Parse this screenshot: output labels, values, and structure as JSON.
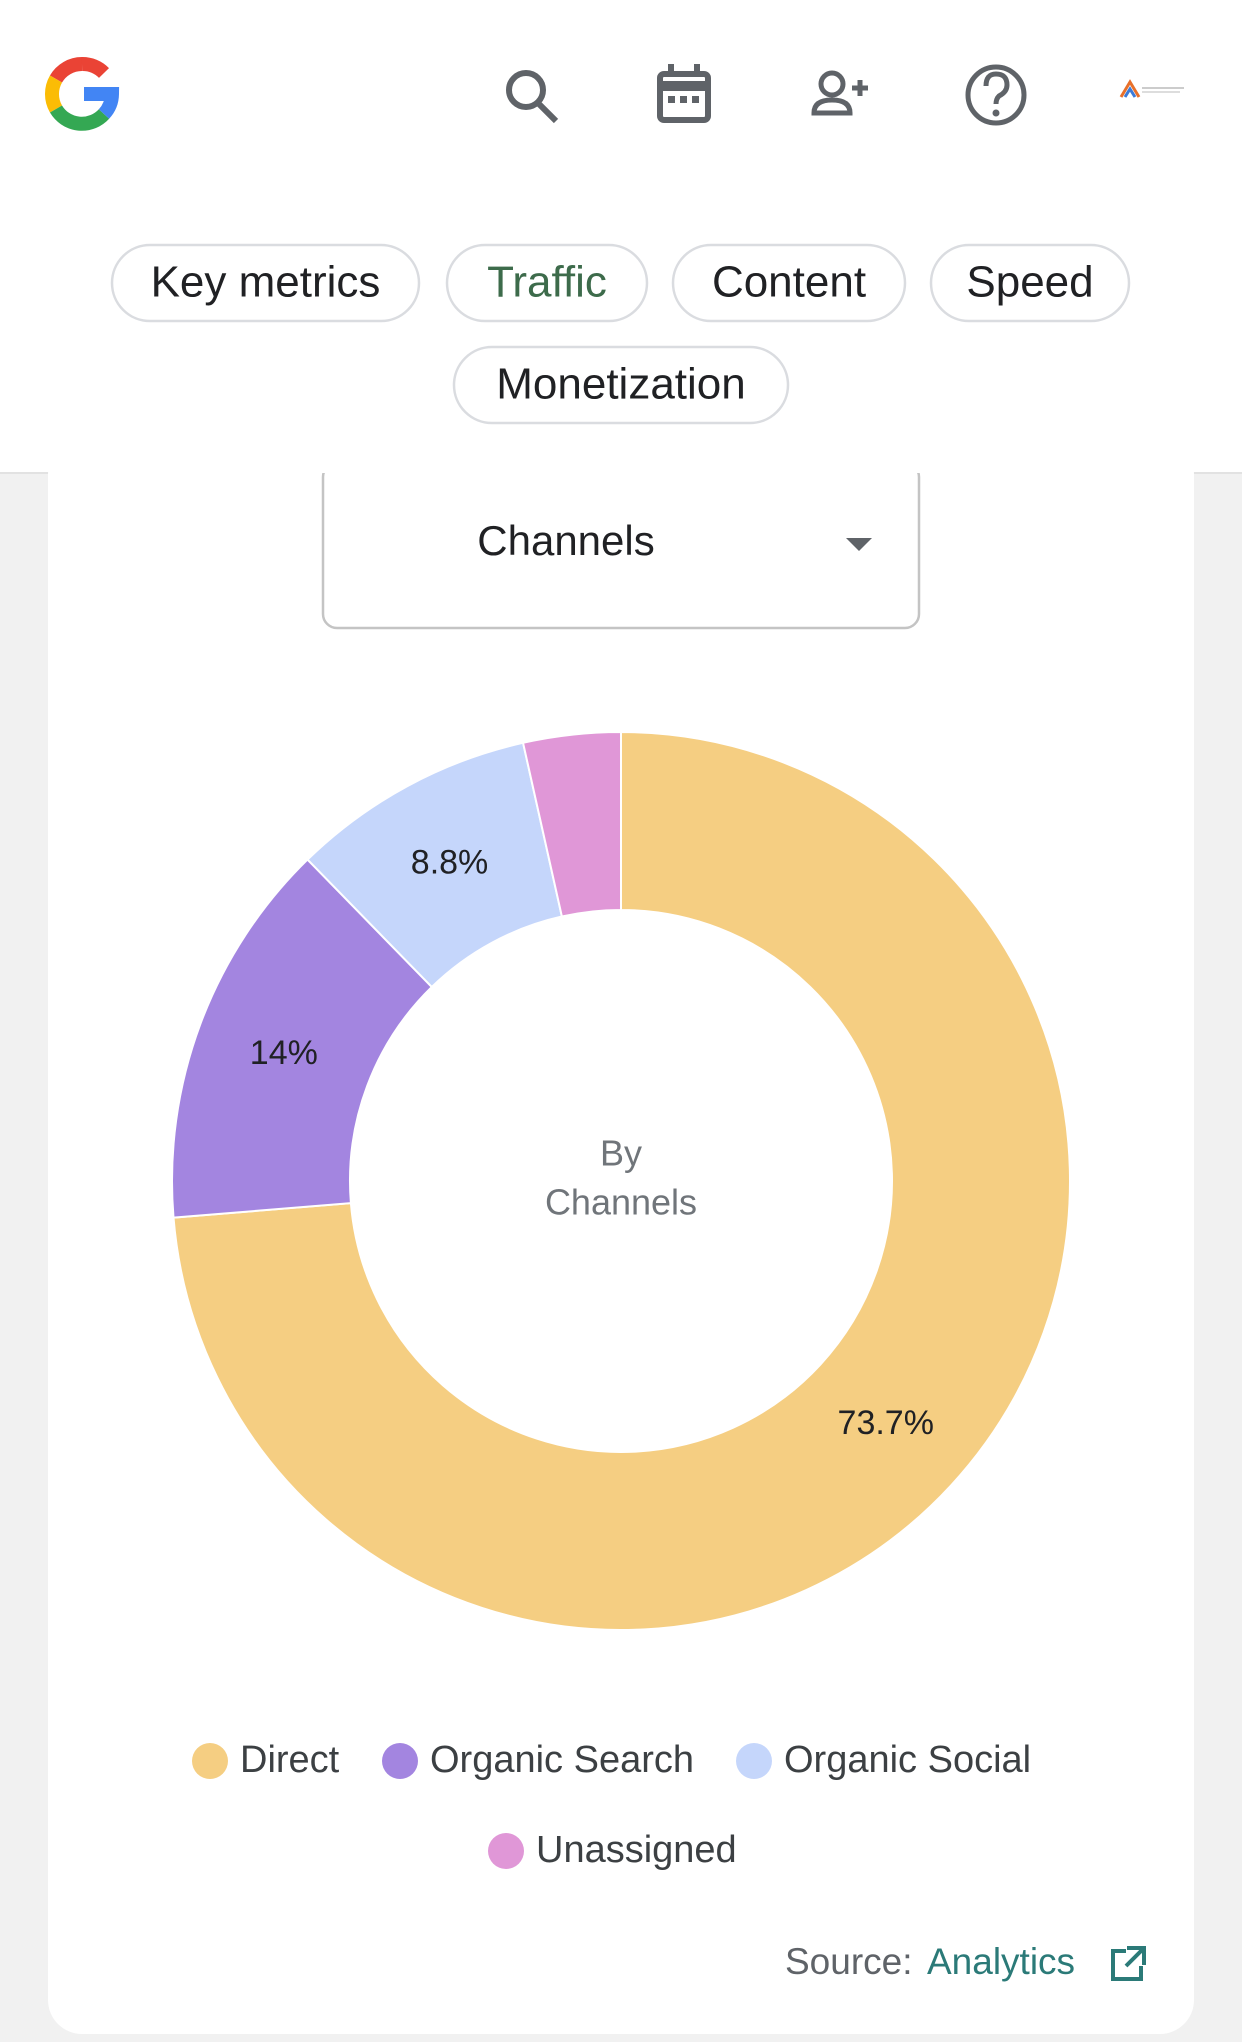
{
  "tabs": [
    "Key metrics",
    "Traffic",
    "Content",
    "Speed",
    "Monetization"
  ],
  "dropdown": "Channels",
  "chart_data": {
    "type": "donut",
    "center_label": [
      "By",
      "Channels"
    ],
    "categories": [
      "Direct",
      "Organic Search",
      "Organic Social",
      "Unassigned"
    ],
    "values": [
      73.7,
      14,
      8.8,
      3.5
    ],
    "value_labels": [
      "73.7%",
      "14%",
      "8.8%",
      null
    ],
    "colors": [
      "#f5ce82",
      "#a385e0",
      "#c5d6fb",
      "#e097d7"
    ]
  },
  "source": {
    "label": "Source:",
    "link": "Analytics"
  }
}
